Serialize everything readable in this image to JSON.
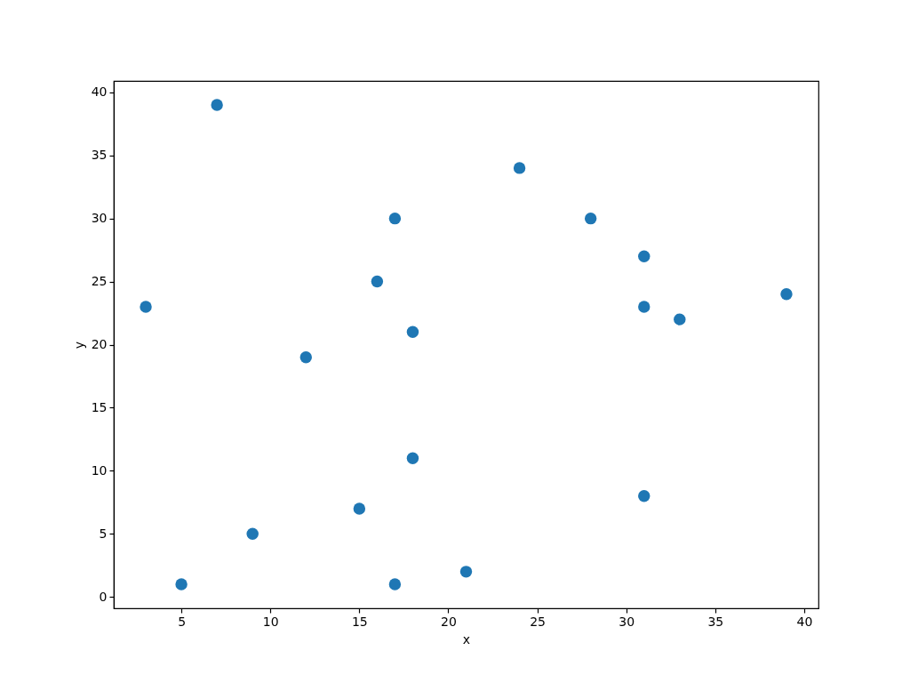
{
  "chart_data": {
    "type": "scatter",
    "xlabel": "x",
    "ylabel": "y",
    "x": [
      7,
      24,
      17,
      28,
      31,
      16,
      39,
      3,
      31,
      33,
      18,
      12,
      18,
      31,
      15,
      9,
      21,
      5,
      17
    ],
    "values": [
      39,
      34,
      30,
      30,
      27,
      25,
      24,
      23,
      23,
      22,
      21,
      19,
      11,
      8,
      7,
      5,
      2,
      1,
      1
    ],
    "color": "#1f77b4",
    "marker": "circle",
    "xlim": [
      1.2,
      40.8
    ],
    "ylim": [
      -0.9,
      40.9
    ],
    "xticks": [
      5,
      10,
      15,
      20,
      25,
      30,
      35,
      40
    ],
    "yticks": [
      0,
      5,
      10,
      15,
      20,
      25,
      30,
      35,
      40
    ]
  }
}
